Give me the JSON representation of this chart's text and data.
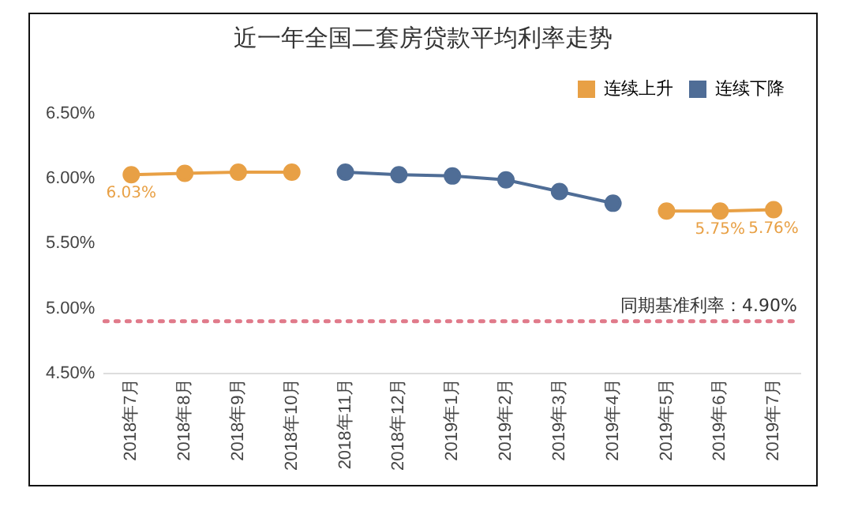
{
  "chart_data": {
    "type": "line",
    "title": "近一年全国二套房贷款平均利率走势",
    "categories": [
      "2018年7月",
      "2018年8月",
      "2018年9月",
      "2018年10月",
      "2018年11月",
      "2018年12月",
      "2019年1月",
      "2019年2月",
      "2019年3月",
      "2019年4月",
      "2019年5月",
      "2019年6月",
      "2019年7月"
    ],
    "series": [
      {
        "name": "连续上升",
        "color": "#e8a045",
        "values": [
          6.03,
          6.04,
          6.05,
          6.05,
          null,
          null,
          null,
          null,
          null,
          null,
          5.75,
          5.75,
          5.76
        ],
        "value_labels": [
          "6.03%",
          null,
          null,
          null,
          null,
          null,
          null,
          null,
          null,
          null,
          null,
          "5.75%",
          "5.76%"
        ]
      },
      {
        "name": "连续下降",
        "color": "#4f6d96",
        "values": [
          null,
          null,
          null,
          null,
          6.05,
          6.03,
          6.02,
          5.99,
          5.9,
          5.81,
          null,
          null,
          null
        ]
      }
    ],
    "ylim": [
      4.5,
      6.5
    ],
    "yticks": [
      {
        "value": 4.5,
        "label": "4.50%"
      },
      {
        "value": 5,
        "label": "5.00%"
      },
      {
        "value": 5.5,
        "label": "5.50%"
      },
      {
        "value": 6,
        "label": "6.00%"
      },
      {
        "value": 6.5,
        "label": "6.50%"
      }
    ],
    "ref_lines": [
      {
        "axis": "y",
        "value": 4.9,
        "label": "同期基准利率：4.90%",
        "color": "#e07a8a",
        "line_style": "dotted"
      }
    ],
    "grid": false,
    "legend": "top right",
    "marker": "circle",
    "line_style": "solid"
  }
}
